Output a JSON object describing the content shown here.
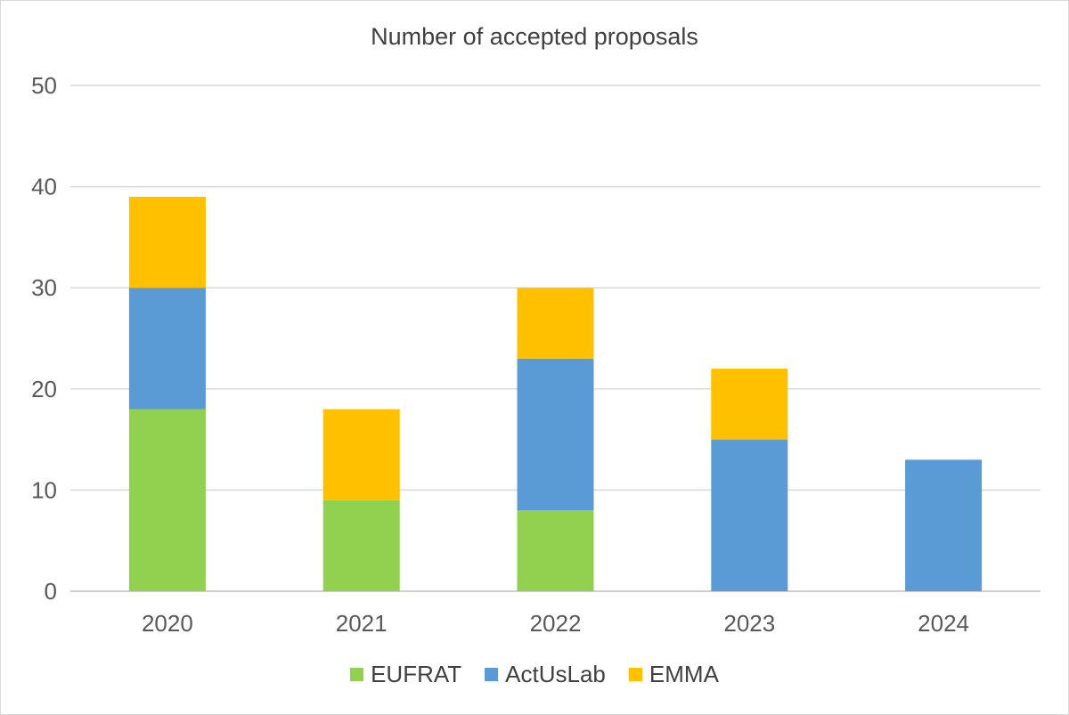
{
  "chart_data": {
    "type": "bar",
    "stacked": true,
    "title": "Number of accepted proposals",
    "xlabel": "",
    "ylabel": "",
    "categories": [
      "2020",
      "2021",
      "2022",
      "2023",
      "2024"
    ],
    "ylim": [
      0,
      50
    ],
    "yticks": [
      0,
      10,
      20,
      30,
      40,
      50
    ],
    "grid": true,
    "legend_position": "bottom",
    "series": [
      {
        "name": "EUFRAT",
        "color": "#92d050",
        "values": [
          18,
          9,
          8,
          0,
          0
        ]
      },
      {
        "name": "ActUsLab",
        "color": "#5b9bd5",
        "values": [
          12,
          0,
          15,
          15,
          13
        ]
      },
      {
        "name": "EMMA",
        "color": "#ffc000",
        "values": [
          9,
          9,
          7,
          7,
          0
        ]
      }
    ]
  }
}
